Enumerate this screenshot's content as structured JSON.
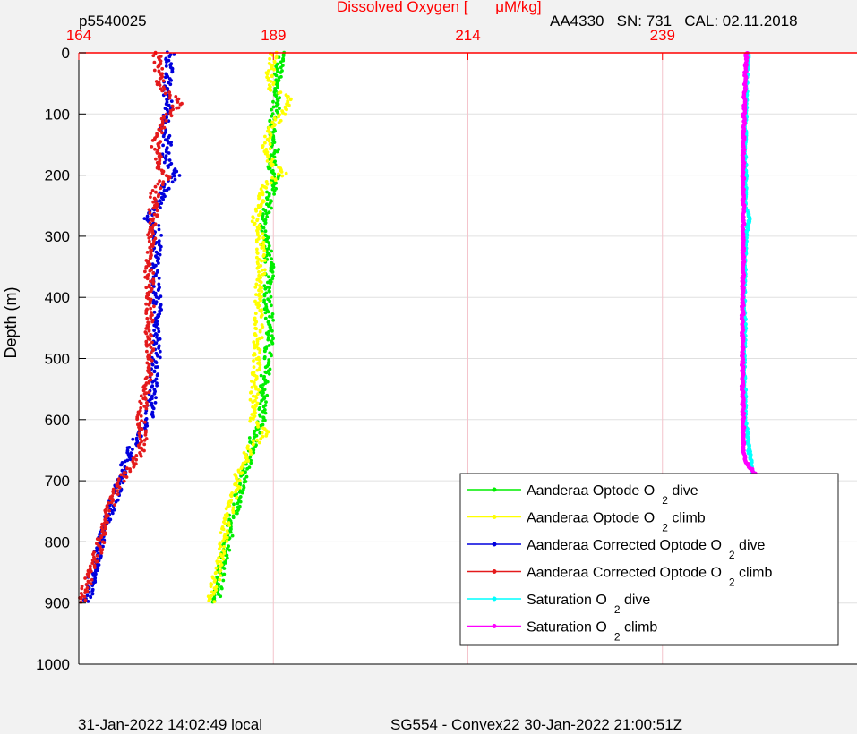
{
  "header": {
    "left": "p5540025",
    "title": "Dissolved Oxygen [",
    "title_unit": "μM/kg]",
    "right": "AA4330   SN: 731   CAL: 02.11.2018"
  },
  "footer": {
    "left": "31-Jan-2022 14:02:49 local",
    "center": "SG554 - Convex22 30-Jan-2022 21:00:51Z"
  },
  "colors": {
    "red": "#e41a1c",
    "green": "#00ee00",
    "yellow": "#ffff00",
    "blue": "#0000dd",
    "cyan": "#00ffff",
    "magenta": "#ff00ff",
    "axis_red": "#ff0000",
    "grid": "#e0e0e0",
    "grid_v": "#f4c4cc"
  },
  "chart_data": {
    "type": "scatter",
    "ylabel": "Depth (m)",
    "xlim": [
      164,
      264
    ],
    "ylim": [
      0,
      1000
    ],
    "y_reversed": true,
    "x_ticks": [
      164,
      189,
      214,
      239
    ],
    "y_ticks": [
      0,
      100,
      200,
      300,
      400,
      500,
      600,
      700,
      800,
      900,
      1000
    ],
    "legend_position": "bottom-right",
    "legend": [
      {
        "label": "Aanderaa Optode O",
        "sub": "2",
        "suffix": " dive",
        "color": "#00ee00"
      },
      {
        "label": "Aanderaa Optode O",
        "sub": "2",
        "suffix": " climb",
        "color": "#ffff00"
      },
      {
        "label": "Aanderaa Corrected Optode O",
        "sub": "2",
        "suffix": " dive",
        "color": "#0000dd"
      },
      {
        "label": "Aanderaa Corrected Optode O",
        "sub": "2",
        "suffix": " climb",
        "color": "#e41a1c"
      },
      {
        "label": "Saturation O",
        "sub": "2",
        "suffix": " dive",
        "color": "#00ffff"
      },
      {
        "label": "Saturation O",
        "sub": "2",
        "suffix": " climb",
        "color": "#ff00ff"
      }
    ],
    "series": [
      {
        "key": "green",
        "color": "#00ee00",
        "points": [
          [
            190.2,
            0
          ],
          [
            189.8,
            20
          ],
          [
            189.3,
            50
          ],
          [
            189.5,
            80
          ],
          [
            189.0,
            110
          ],
          [
            188.8,
            140
          ],
          [
            189.2,
            160
          ],
          [
            188.7,
            190
          ],
          [
            189.5,
            200
          ],
          [
            188.6,
            230
          ],
          [
            188.2,
            260
          ],
          [
            187.6,
            275
          ],
          [
            188.0,
            300
          ],
          [
            188.5,
            350
          ],
          [
            188.3,
            400
          ],
          [
            188.6,
            450
          ],
          [
            188.2,
            500
          ],
          [
            187.8,
            550
          ],
          [
            187.5,
            600
          ],
          [
            186.5,
            630
          ],
          [
            185.8,
            660
          ],
          [
            185.2,
            690
          ],
          [
            184.6,
            720
          ],
          [
            184.0,
            750
          ],
          [
            183.5,
            780
          ],
          [
            183.0,
            810
          ],
          [
            182.5,
            840
          ],
          [
            182.0,
            870
          ],
          [
            181.5,
            900
          ]
        ]
      },
      {
        "key": "yellow",
        "color": "#ffff00",
        "points": [
          [
            189.0,
            0
          ],
          [
            188.6,
            30
          ],
          [
            188.9,
            60
          ],
          [
            191.0,
            75
          ],
          [
            190.0,
            100
          ],
          [
            188.5,
            130
          ],
          [
            188.0,
            165
          ],
          [
            189.0,
            185
          ],
          [
            190.5,
            195
          ],
          [
            188.0,
            215
          ],
          [
            187.5,
            245
          ],
          [
            186.5,
            270
          ],
          [
            187.2,
            300
          ],
          [
            187.5,
            350
          ],
          [
            187.0,
            400
          ],
          [
            187.2,
            450
          ],
          [
            186.8,
            500
          ],
          [
            186.6,
            550
          ],
          [
            186.2,
            600
          ],
          [
            188.0,
            620
          ],
          [
            185.8,
            650
          ],
          [
            184.8,
            680
          ],
          [
            184.2,
            710
          ],
          [
            183.5,
            740
          ],
          [
            182.8,
            780
          ],
          [
            182.3,
            820
          ],
          [
            181.8,
            850
          ],
          [
            181.0,
            890
          ],
          [
            181.2,
            900
          ]
        ]
      },
      {
        "key": "blue",
        "color": "#0000dd",
        "points": [
          [
            175.8,
            0
          ],
          [
            175.5,
            30
          ],
          [
            175.2,
            60
          ],
          [
            175.6,
            90
          ],
          [
            175.0,
            120
          ],
          [
            175.4,
            150
          ],
          [
            175.0,
            170
          ],
          [
            176.0,
            190
          ],
          [
            176.5,
            200
          ],
          [
            175.2,
            215
          ],
          [
            174.8,
            235
          ],
          [
            174.0,
            255
          ],
          [
            172.5,
            270
          ],
          [
            173.8,
            280
          ],
          [
            174.2,
            310
          ],
          [
            173.8,
            350
          ],
          [
            174.0,
            400
          ],
          [
            174.2,
            450
          ],
          [
            173.9,
            500
          ],
          [
            173.6,
            550
          ],
          [
            173.0,
            600
          ],
          [
            171.5,
            630
          ],
          [
            170.2,
            660
          ],
          [
            169.5,
            690
          ],
          [
            168.8,
            720
          ],
          [
            168.0,
            750
          ],
          [
            167.3,
            780
          ],
          [
            166.6,
            810
          ],
          [
            166.0,
            840
          ],
          [
            165.5,
            870
          ],
          [
            165.0,
            900
          ]
        ]
      },
      {
        "key": "red",
        "color": "#e41a1c",
        "points": [
          [
            174.0,
            0
          ],
          [
            174.3,
            30
          ],
          [
            174.6,
            60
          ],
          [
            177.0,
            80
          ],
          [
            175.5,
            100
          ],
          [
            174.2,
            130
          ],
          [
            173.8,
            160
          ],
          [
            174.5,
            190
          ],
          [
            175.5,
            200
          ],
          [
            173.8,
            225
          ],
          [
            173.6,
            250
          ],
          [
            173.5,
            275
          ],
          [
            173.3,
            300
          ],
          [
            173.0,
            350
          ],
          [
            173.2,
            400
          ],
          [
            173.0,
            450
          ],
          [
            173.1,
            500
          ],
          [
            172.6,
            550
          ],
          [
            172.0,
            600
          ],
          [
            172.3,
            630
          ],
          [
            171.7,
            660
          ],
          [
            169.8,
            690
          ],
          [
            168.7,
            720
          ],
          [
            167.8,
            750
          ],
          [
            167.2,
            780
          ],
          [
            166.6,
            810
          ],
          [
            165.8,
            840
          ],
          [
            165.0,
            870
          ],
          [
            164.4,
            900
          ]
        ]
      },
      {
        "key": "cyan",
        "color": "#00ffff",
        "points": [
          [
            250.0,
            0
          ],
          [
            249.8,
            50
          ],
          [
            249.7,
            100
          ],
          [
            249.6,
            150
          ],
          [
            249.7,
            200
          ],
          [
            249.6,
            250
          ],
          [
            250.2,
            270
          ],
          [
            249.7,
            300
          ],
          [
            249.6,
            350
          ],
          [
            249.5,
            400
          ],
          [
            249.6,
            450
          ],
          [
            249.5,
            500
          ],
          [
            249.6,
            550
          ],
          [
            249.7,
            600
          ],
          [
            250.0,
            640
          ],
          [
            250.5,
            680
          ],
          [
            251.0,
            720
          ],
          [
            251.3,
            760
          ],
          [
            251.8,
            800
          ],
          [
            252.3,
            840
          ],
          [
            252.6,
            870
          ]
        ]
      },
      {
        "key": "magenta",
        "color": "#ff00ff",
        "points": [
          [
            249.8,
            0
          ],
          [
            249.6,
            50
          ],
          [
            249.5,
            100
          ],
          [
            249.4,
            150
          ],
          [
            249.4,
            200
          ],
          [
            249.4,
            250
          ],
          [
            249.4,
            300
          ],
          [
            249.4,
            350
          ],
          [
            249.3,
            400
          ],
          [
            249.3,
            450
          ],
          [
            249.3,
            500
          ],
          [
            249.3,
            550
          ],
          [
            249.4,
            600
          ],
          [
            249.4,
            650
          ],
          [
            249.8,
            670
          ],
          [
            251.0,
            690
          ],
          [
            251.3,
            720
          ],
          [
            251.7,
            760
          ],
          [
            252.0,
            800
          ],
          [
            252.3,
            830
          ],
          [
            253.0,
            850
          ],
          [
            253.8,
            870
          ],
          [
            254.0,
            885
          ],
          [
            254.2,
            900
          ]
        ]
      }
    ]
  }
}
